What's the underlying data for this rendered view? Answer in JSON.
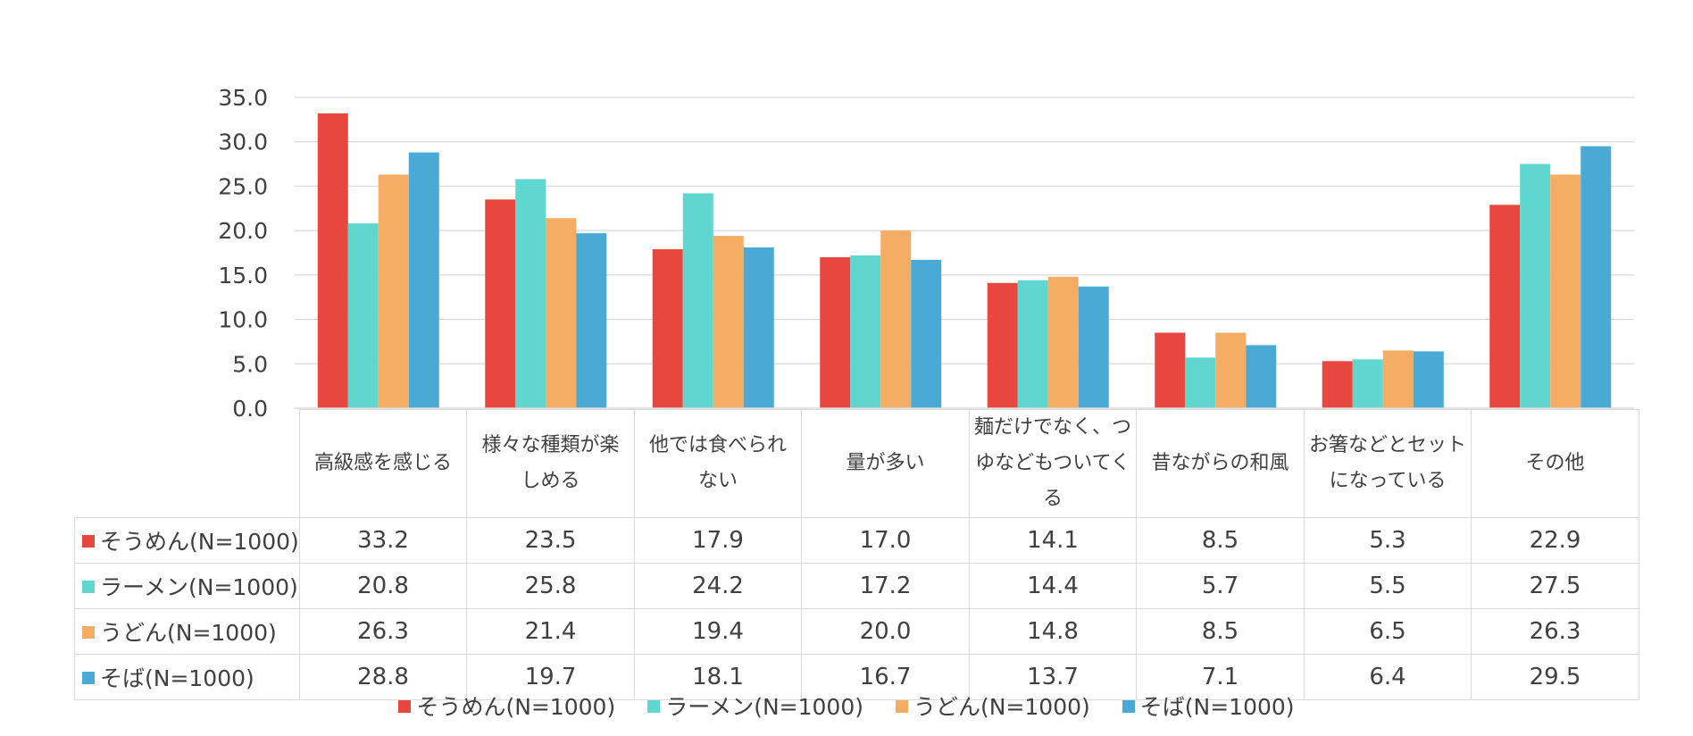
{
  "chart_data": {
    "type": "bar",
    "categories": [
      "高級感を感じる",
      "様々な種類が楽しめる",
      "他では食べられない",
      "量が多い",
      "麺だけでなく、つゆなどもついてくる",
      "昔ながらの和風",
      "お箸などとセットになっている",
      "その他"
    ],
    "category_lines": [
      [
        "高級感を感じる"
      ],
      [
        "様々な種類が楽",
        "しめる"
      ],
      [
        "他では食べられ",
        "ない"
      ],
      [
        "量が多い"
      ],
      [
        "麺だけでなく、つ",
        "ゆなどもついてくる"
      ],
      [
        "昔ながらの和風"
      ],
      [
        "お箸などとセット",
        "になっている"
      ],
      [
        "その他"
      ]
    ],
    "series": [
      {
        "name": "そうめん(N=1000)",
        "color": "#e8473f",
        "values": [
          33.2,
          23.5,
          17.9,
          17.0,
          14.1,
          8.5,
          5.3,
          22.9
        ],
        "labels": [
          "33.2",
          "23.5",
          "17.9",
          "17.0",
          "14.1",
          "8.5",
          "5.3",
          "22.9"
        ]
      },
      {
        "name": "ラーメン(N=1000)",
        "color": "#5fd6ce",
        "values": [
          20.8,
          25.8,
          24.2,
          17.2,
          14.4,
          5.7,
          5.5,
          27.5
        ],
        "labels": [
          "20.8",
          "25.8",
          "24.2",
          "17.2",
          "14.4",
          "5.7",
          "5.5",
          "27.5"
        ]
      },
      {
        "name": "うどん(N=1000)",
        "color": "#f5ad63",
        "values": [
          26.3,
          21.4,
          19.4,
          20.0,
          14.8,
          8.5,
          6.5,
          26.3
        ],
        "labels": [
          "26.3",
          "21.4",
          "19.4",
          "20.0",
          "14.8",
          "8.5",
          "6.5",
          "26.3"
        ]
      },
      {
        "name": "そば(N=1000)",
        "color": "#4ba9d6",
        "values": [
          28.8,
          19.7,
          18.1,
          16.7,
          13.7,
          7.1,
          6.4,
          29.5
        ],
        "labels": [
          "28.8",
          "19.7",
          "18.1",
          "16.7",
          "13.7",
          "7.1",
          "6.4",
          "29.5"
        ]
      }
    ],
    "yticks": [
      "0.0",
      "5.0",
      "10.0",
      "15.0",
      "20.0",
      "25.0",
      "30.0",
      "35.0"
    ],
    "ylim": [
      0,
      35
    ],
    "grid": true,
    "legend_position": "bottom",
    "table_below": true
  }
}
